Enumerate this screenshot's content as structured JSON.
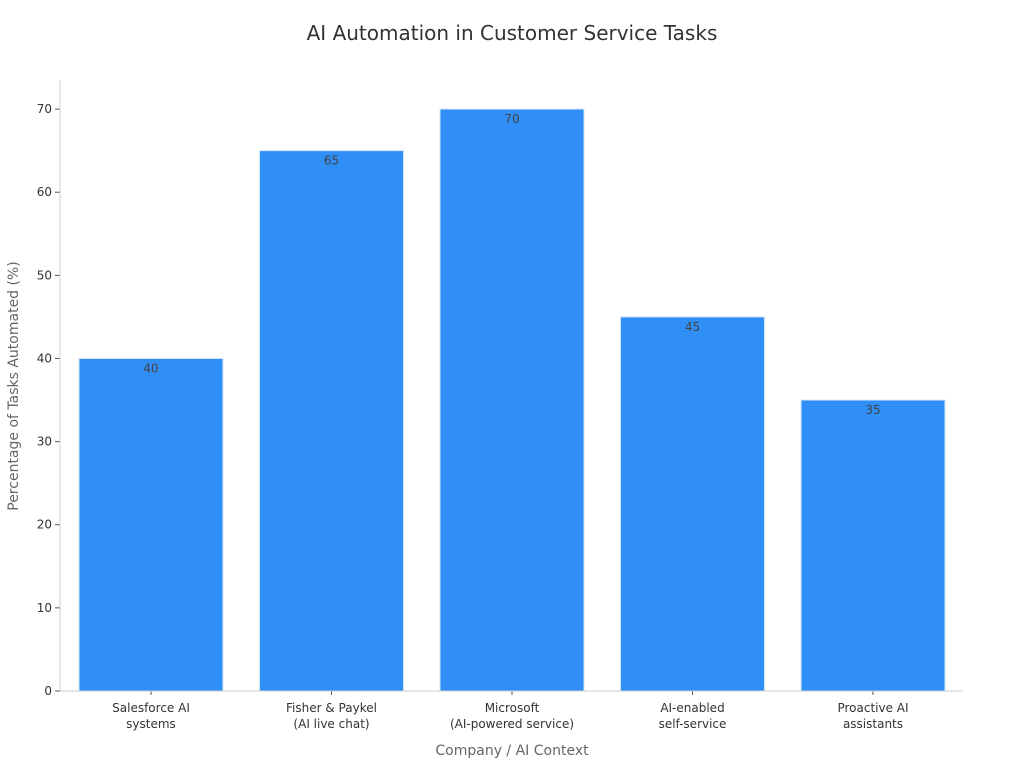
{
  "chart_data": {
    "type": "bar",
    "title": "AI Automation in Customer Service Tasks",
    "xlabel": "Company / AI Context",
    "ylabel": "Percentage of Tasks Automated (%)",
    "categories": [
      [
        "Salesforce AI",
        "systems"
      ],
      [
        "Fisher & Paykel",
        "(AI live chat)"
      ],
      [
        "Microsoft",
        "(AI-powered service)"
      ],
      [
        "AI-enabled",
        "self-service"
      ],
      [
        "Proactive AI",
        "assistants"
      ]
    ],
    "values": [
      40,
      65,
      70,
      45,
      35
    ],
    "ylim": [
      0,
      73.5
    ],
    "yticks": [
      0,
      10,
      20,
      30,
      40,
      50,
      60,
      70
    ],
    "grid": false,
    "bar_color": "#2f8ff7",
    "bar_edge_color": "#d0e4fb"
  }
}
